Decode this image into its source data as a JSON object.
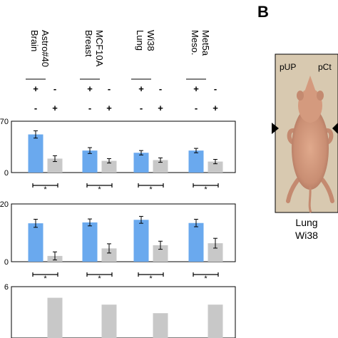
{
  "panel_b": {
    "letter": "B",
    "photo_labels": [
      "pUP",
      "pCt"
    ],
    "caption_lines": [
      "Lung",
      "Wi38"
    ]
  },
  "chart_data": {
    "type": "bar",
    "colors": {
      "plus": "#6aa9ee",
      "minus": "#c8c8c8"
    },
    "groups": [
      {
        "id": "brain",
        "label_lines": [
          "Brain",
          "Astro#40"
        ]
      },
      {
        "id": "breast",
        "label_lines": [
          "Breast",
          "MCF10A"
        ]
      },
      {
        "id": "lung",
        "label_lines": [
          "Lung",
          "Wi38"
        ]
      },
      {
        "id": "meso",
        "label_lines": [
          "Meso.",
          "Met5a"
        ]
      }
    ],
    "conditions": [
      {
        "row": "first",
        "symbols": [
          "+",
          "-"
        ]
      },
      {
        "row": "second",
        "symbols": [
          "-",
          "+"
        ]
      }
    ],
    "significance_marker": "*",
    "panels": [
      {
        "id": "top",
        "ylim": [
          0,
          70
        ],
        "ticks": [
          0,
          70
        ],
        "series": [
          {
            "key": "plus",
            "values": [
              52,
              30,
              27,
              30
            ],
            "errors": [
              5,
              4,
              3,
              3
            ]
          },
          {
            "key": "minus",
            "values": [
              19,
              16,
              17,
              15
            ],
            "errors": [
              4,
              3,
              3,
              3
            ]
          }
        ],
        "significance": true
      },
      {
        "id": "middle",
        "ylim": [
          0,
          20
        ],
        "ticks": [
          0,
          20
        ],
        "series": [
          {
            "key": "plus",
            "values": [
              13.3,
              13.6,
              14.5,
              13.4
            ],
            "errors": [
              1.4,
              1.2,
              1.2,
              1.3
            ]
          },
          {
            "key": "minus",
            "values": [
              2.0,
              4.6,
              5.7,
              6.4
            ],
            "errors": [
              1.4,
              1.6,
              1.4,
              1.7
            ]
          }
        ],
        "significance": true
      },
      {
        "id": "bottom",
        "ylim": [
          0,
          6
        ],
        "ticks": [
          6
        ],
        "series": [
          {
            "key": "minus",
            "values": [
              4.7,
              3.9,
              2.9,
              3.9
            ]
          }
        ],
        "significance": false
      }
    ]
  }
}
